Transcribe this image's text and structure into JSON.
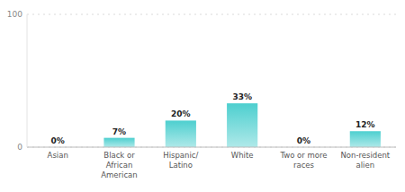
{
  "chart_data": {
    "type": "bar",
    "categories": [
      "Asian",
      "Black or\nAfrican\nAmerican",
      "Hispanic/\nLatino",
      "White",
      "Two or more\nraces",
      "Non-resident\nalien"
    ],
    "values": [
      0,
      7,
      20,
      33,
      0,
      12
    ],
    "value_labels": [
      "0%",
      "7%",
      "20%",
      "33%",
      "0%",
      "12%"
    ],
    "data_labels": true,
    "color": "#4dcfcf",
    "ylim": [
      0,
      100
    ],
    "yticks": [
      0,
      100
    ],
    "grid": true
  }
}
